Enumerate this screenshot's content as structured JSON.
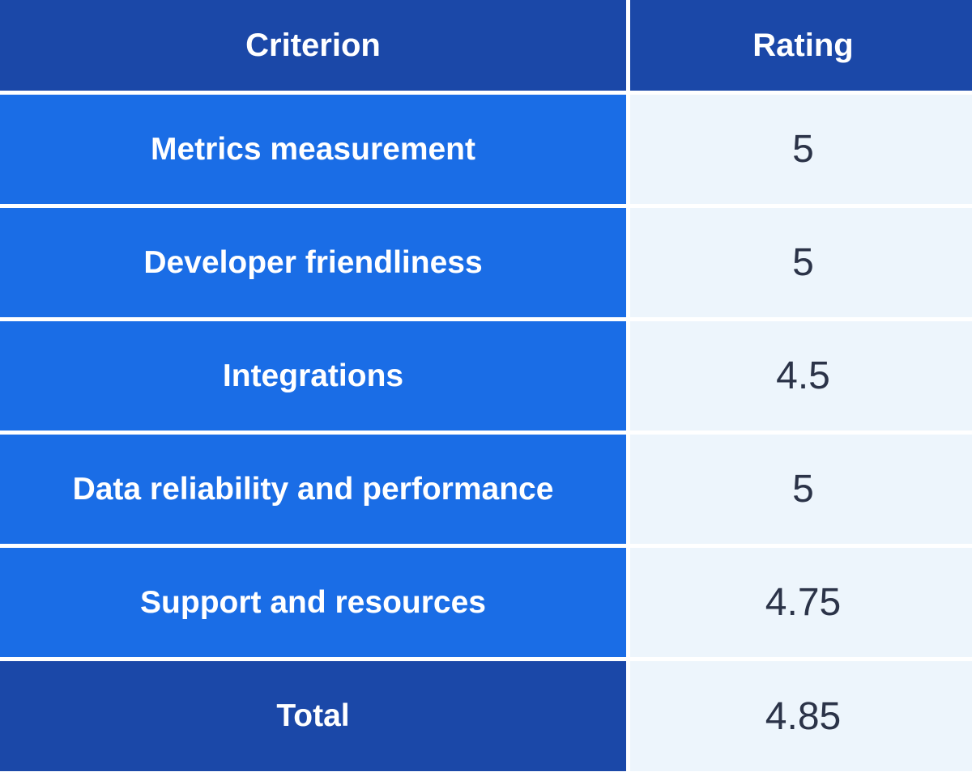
{
  "table": {
    "header": {
      "criterion": "Criterion",
      "rating": "Rating"
    },
    "rows": [
      {
        "criterion": "Metrics measurement",
        "rating": "5"
      },
      {
        "criterion": "Developer friendliness",
        "rating": "5"
      },
      {
        "criterion": "Integrations",
        "rating": "4.5"
      },
      {
        "criterion": "Data reliability and performance",
        "rating": "5"
      },
      {
        "criterion": "Support and resources",
        "rating": "4.75"
      }
    ],
    "total": {
      "label": "Total",
      "rating": "4.85"
    }
  },
  "colors": {
    "header_bg": "#1b48a8",
    "criterion_bg": "#1a6de6",
    "rating_bg": "#edf5fc",
    "rating_text": "#2b3348",
    "header_text": "#ffffff"
  }
}
